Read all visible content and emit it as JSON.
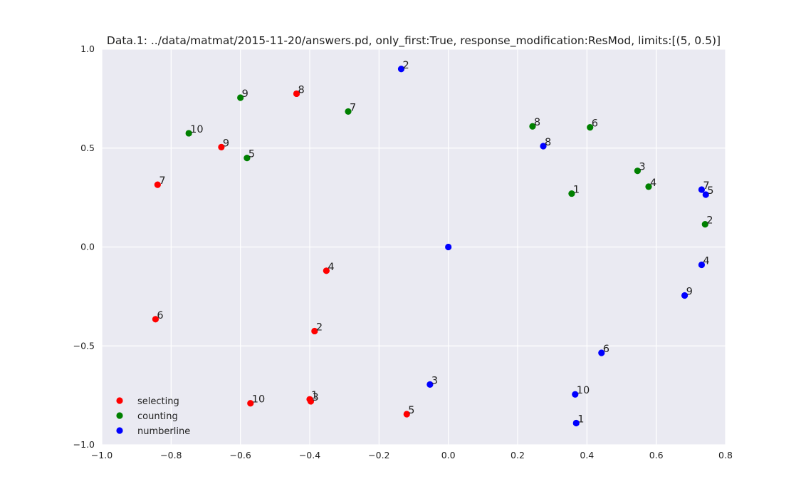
{
  "chart_data": {
    "type": "scatter",
    "title": "Data.1: ../data/matmat/2015-11-20/answers.pd, only_first:True, response_modification:ResMod, limits:[(5, 0.5)]",
    "xlabel": "",
    "ylabel": "",
    "xlim": [
      -1.0,
      0.8
    ],
    "ylim": [
      -1.0,
      1.0
    ],
    "xticks": [
      "−1.0",
      "−0.8",
      "−0.6",
      "−0.4",
      "−0.2",
      "0.0",
      "0.2",
      "0.4",
      "0.6",
      "0.8"
    ],
    "yticks": [
      "1.0",
      "0.5",
      "0.0",
      "−0.5",
      "−1.0"
    ],
    "xtick_values": [
      -1.0,
      -0.8,
      -0.6,
      -0.4,
      -0.2,
      0.0,
      0.2,
      0.4,
      0.6,
      0.8
    ],
    "ytick_values": [
      1.0,
      0.5,
      0.0,
      -0.5,
      -1.0
    ],
    "grid": true,
    "legend_position": "lower-left",
    "series": [
      {
        "name": "selecting",
        "color": "#ff0000",
        "points": [
          {
            "x": -0.4,
            "y": -0.77,
            "label": "1"
          },
          {
            "x": -0.386,
            "y": -0.425,
            "label": "2"
          },
          {
            "x": -0.397,
            "y": -0.78,
            "label": "3"
          },
          {
            "x": -0.352,
            "y": -0.12,
            "label": "4"
          },
          {
            "x": -0.12,
            "y": -0.845,
            "label": "5"
          },
          {
            "x": -0.845,
            "y": -0.365,
            "label": "6"
          },
          {
            "x": -0.839,
            "y": 0.315,
            "label": "7"
          },
          {
            "x": -0.438,
            "y": 0.775,
            "label": "8"
          },
          {
            "x": -0.655,
            "y": 0.505,
            "label": "9"
          },
          {
            "x": -0.571,
            "y": -0.79,
            "label": "10"
          }
        ]
      },
      {
        "name": "counting",
        "color": "#008000",
        "points": [
          {
            "x": 0.356,
            "y": 0.27,
            "label": "1"
          },
          {
            "x": 0.741,
            "y": 0.115,
            "label": "2"
          },
          {
            "x": 0.546,
            "y": 0.385,
            "label": "3"
          },
          {
            "x": 0.578,
            "y": 0.305,
            "label": "4"
          },
          {
            "x": -0.581,
            "y": 0.45,
            "label": "5"
          },
          {
            "x": 0.409,
            "y": 0.605,
            "label": "6"
          },
          {
            "x": -0.289,
            "y": 0.685,
            "label": "7"
          },
          {
            "x": 0.243,
            "y": 0.61,
            "label": "8"
          },
          {
            "x": -0.6,
            "y": 0.755,
            "label": "9"
          },
          {
            "x": -0.749,
            "y": 0.575,
            "label": "10"
          }
        ]
      },
      {
        "name": "numberline",
        "color": "#0000ff",
        "points": [
          {
            "x": 0.369,
            "y": -0.89,
            "label": "1"
          },
          {
            "x": -0.136,
            "y": 0.9,
            "label": "2"
          },
          {
            "x": -0.053,
            "y": -0.695,
            "label": "3"
          },
          {
            "x": 0.731,
            "y": -0.09,
            "label": "4"
          },
          {
            "x": 0.743,
            "y": 0.265,
            "label": "5"
          },
          {
            "x": 0.442,
            "y": -0.535,
            "label": "6"
          },
          {
            "x": 0.731,
            "y": 0.29,
            "label": "7"
          },
          {
            "x": 0.274,
            "y": 0.51,
            "label": "8"
          },
          {
            "x": 0.682,
            "y": -0.245,
            "label": "9"
          },
          {
            "x": 0.366,
            "y": -0.745,
            "label": "10"
          },
          {
            "x": 0.0,
            "y": 0.0,
            "label": ""
          }
        ]
      }
    ]
  }
}
